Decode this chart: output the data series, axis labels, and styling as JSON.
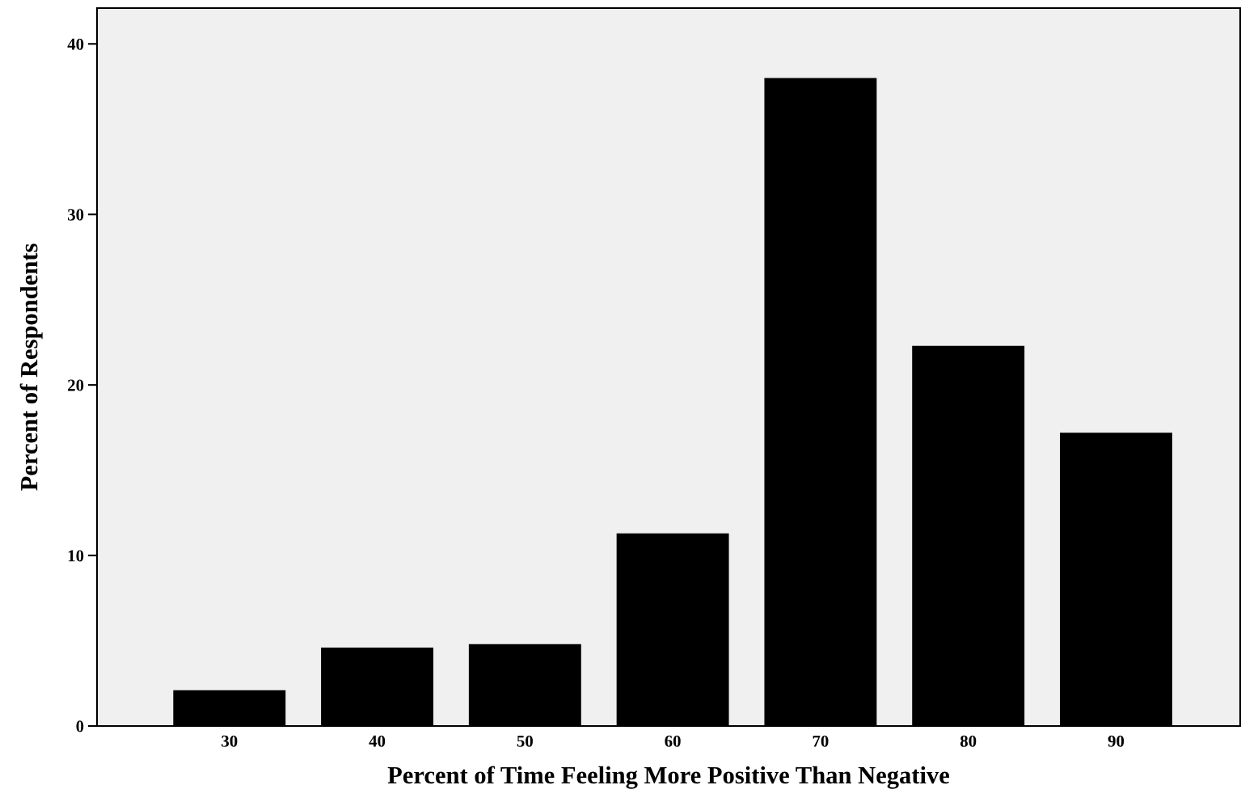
{
  "chart_data": {
    "type": "bar",
    "xlabel": "Percent of Time Feeling More Positive Than Negative",
    "ylabel": "Percent of Respondents",
    "categories": [
      "30",
      "40",
      "50",
      "60",
      "70",
      "80",
      "90"
    ],
    "values": [
      2.1,
      4.6,
      4.8,
      11.3,
      38.0,
      22.3,
      17.2
    ],
    "color": "#000000",
    "ylim": [
      0,
      42.1
    ],
    "yticks": [
      0,
      10,
      20,
      30,
      40
    ],
    "grid": false
  }
}
